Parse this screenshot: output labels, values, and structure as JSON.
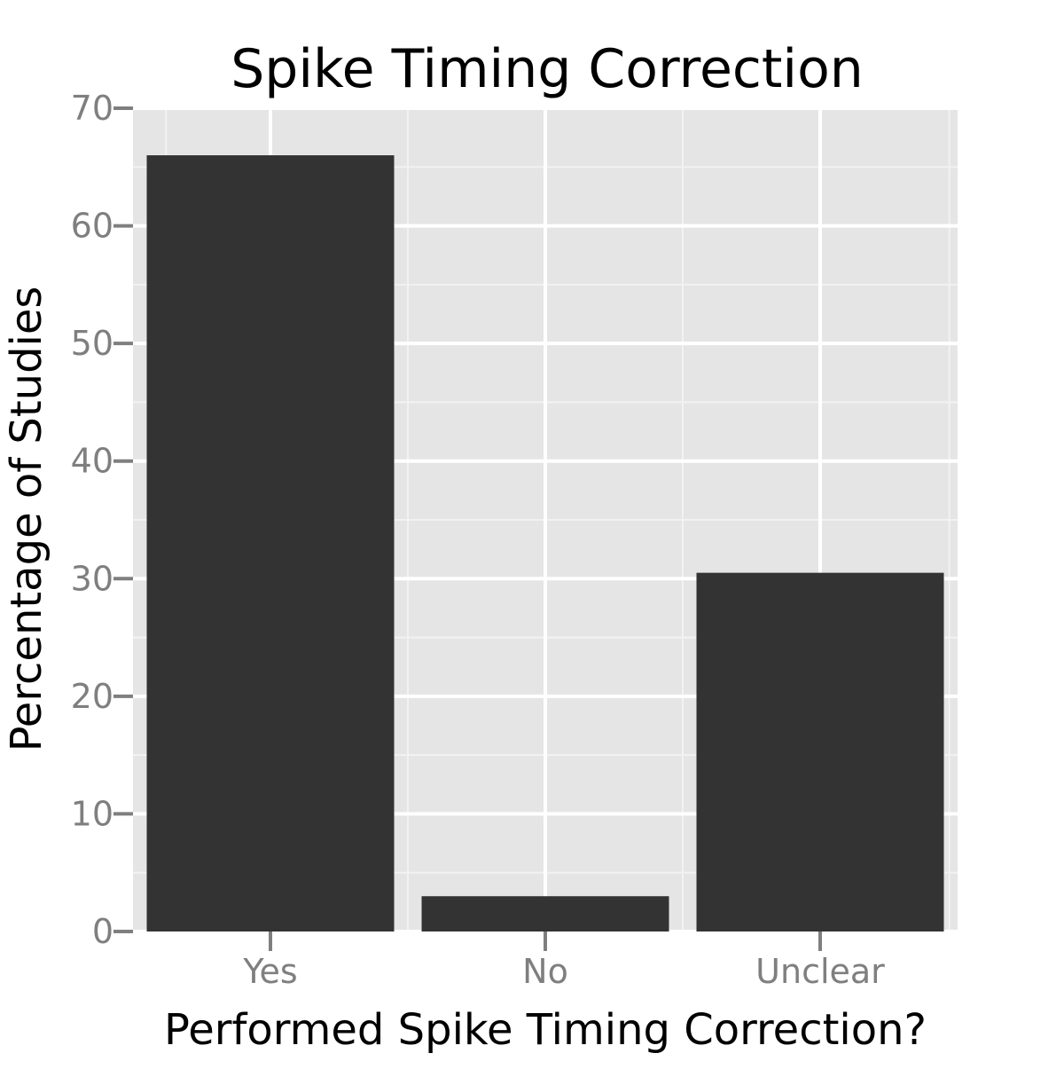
{
  "chart_data": {
    "type": "bar",
    "title": "Spike Timing Correction",
    "xlabel": "Performed Spike Timing Correction?",
    "ylabel": "Percentage of Studies",
    "categories": [
      "Yes",
      "No",
      "Unclear"
    ],
    "values": [
      66,
      3,
      30.5
    ],
    "ylim": [
      0,
      70
    ],
    "yticks": [
      0,
      10,
      20,
      30,
      40,
      50,
      60,
      70
    ],
    "ytick_labels": [
      "0",
      "10",
      "20",
      "30",
      "40",
      "50",
      "60",
      "70"
    ],
    "grid": true,
    "legend": "none",
    "colors": {
      "bar": "#333333",
      "panel_background": "#e5e5e5",
      "grid_major": "#ffffff",
      "grid_minor": "#f2f2f2",
      "tick_label": "#7f7f7f",
      "tick_mark": "#7f7f7f",
      "text": "#000000"
    }
  }
}
